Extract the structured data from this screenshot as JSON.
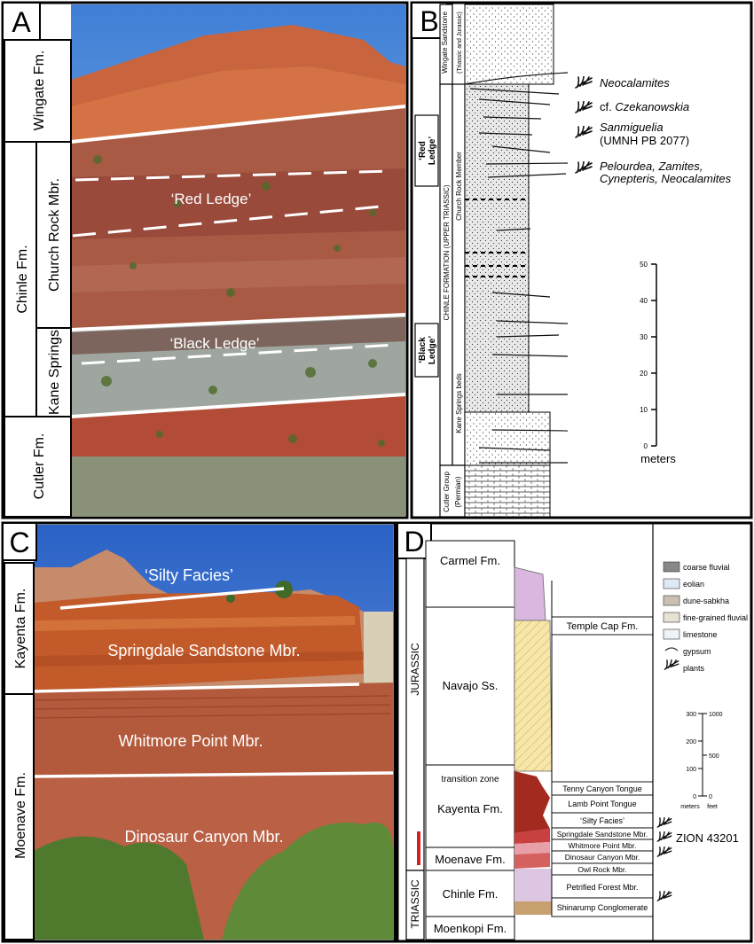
{
  "panelA": {
    "letter": "A",
    "units": {
      "wingate": "Wingate Fm.",
      "chinle": "Chinle Fm.",
      "church_rock": "Church Rock Mbr.",
      "kane_springs": "Kane Springs",
      "cutler": "Cutler Fm."
    },
    "labels": {
      "red_ledge": "‘Red Ledge’",
      "black_ledge": "‘Black Ledge’"
    }
  },
  "panelB": {
    "letter": "B",
    "side": {
      "red_ledge_1": "‘Red",
      "red_ledge_2": "Ledge’",
      "black_ledge_1": "‘Black",
      "black_ledge_2": "Ledge’",
      "chinle_formation": "CHINLE FORMATION (UPPER TRIASSIC)",
      "wingate_1": "Wingate Sandstone",
      "wingate_2": "(Triassic and Jurassic)",
      "church_rock": "Church Rock Member",
      "kane_springs": "Kane Springs beds",
      "cutler_1": "Cutler Group",
      "cutler_2": "(Permian)"
    },
    "plants": [
      "Neocalamites",
      "cf. ",
      "Czekanowskia",
      "Sanmiguelia",
      "(UMNH PB 2077)",
      "Pelourdea, Zamites,",
      "Cynepteris, Neocalamites"
    ],
    "scale": {
      "ticks": [
        "50",
        "40",
        "30",
        "20",
        "10",
        "0"
      ],
      "unit": "meters"
    }
  },
  "panelC": {
    "letter": "C",
    "units": {
      "kayenta": "Kayenta Fm.",
      "moenave": "Moenave Fm."
    },
    "labels": {
      "silty": "‘Silty Facies’",
      "springdale": "Springdale Sandstone Mbr.",
      "whitmore": "Whitmore Point Mbr.",
      "dinosaur": "Dinosaur Canyon Mbr."
    }
  },
  "panelD": {
    "letter": "D",
    "systems": {
      "jurassic": "JURASSIC",
      "triassic": "TRIASSIC"
    },
    "formations": {
      "carmel": "Carmel Fm.",
      "navajo": "Navajo Ss.",
      "transition": "transition zone",
      "kayenta": "Kayenta Fm.",
      "moenave": "Moenave Fm.",
      "chinle": "Chinle Fm.",
      "moenkopi": "Moenkopi Fm."
    },
    "members": {
      "temple_cap": "Temple Cap Fm.",
      "tenny": "Tenny Canyon Tongue",
      "lamb": "Lamb Point Tongue",
      "silty": "‘Silty Facies’",
      "springdale": "Springdale Sandstone Mbr.",
      "whitmore": "Whitmore Point Mbr.",
      "dinosaur": "Dinosaur Canyon Mbr.",
      "owl": "Owl Rock Mbr.",
      "petrified": "Petrified Forest Mbr.",
      "shinarump": "Shinarump Conglomerate"
    },
    "legend": [
      "coarse fluvial",
      "eolian",
      "dune-sabkha",
      "fine-grained fluvial",
      "limestone",
      "gypsum",
      "plants"
    ],
    "zion": "ZION 43201",
    "scale": {
      "meters": [
        "300",
        "200",
        "100",
        "0"
      ],
      "feet": [
        "1000",
        "500",
        "0"
      ],
      "m_label": "meters",
      "f_label": "feet"
    }
  }
}
